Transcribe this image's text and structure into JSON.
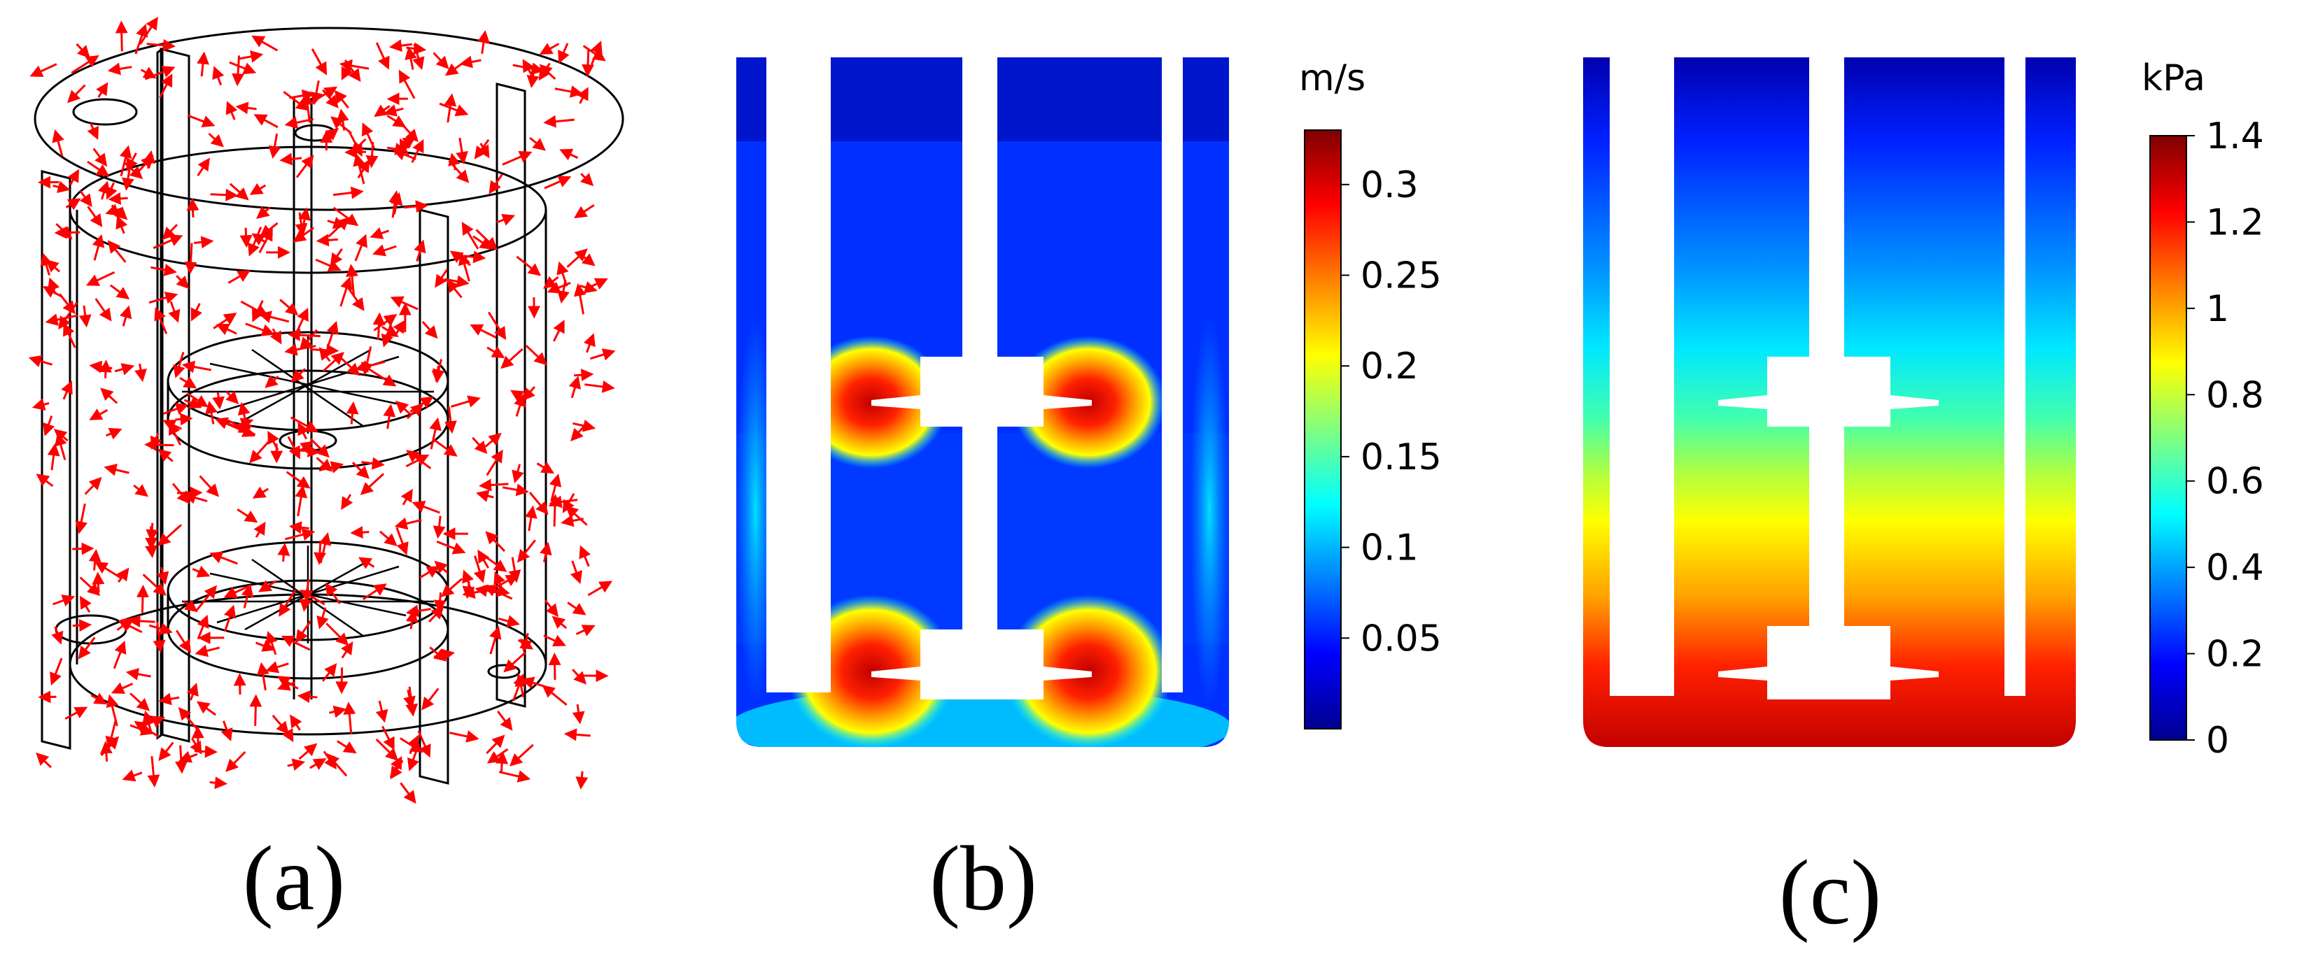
{
  "panels": {
    "a": {
      "label": "(a)"
    },
    "b": {
      "label": "(b)",
      "colorbar": {
        "unit": "m/s",
        "min": 0,
        "max": 0.33,
        "ticks": [
          "0.05",
          "0.1",
          "0.15",
          "0.2",
          "0.25",
          "0.3"
        ],
        "tick_values": [
          0.05,
          0.1,
          0.15,
          0.2,
          0.25,
          0.3
        ]
      }
    },
    "c": {
      "label": "(c)",
      "colorbar": {
        "unit": "kPa",
        "min": 0,
        "max": 1.4,
        "ticks": [
          "0",
          "0.2",
          "0.4",
          "0.6",
          "0.8",
          "1",
          "1.2",
          "1.4"
        ],
        "tick_values": [
          0,
          0.2,
          0.4,
          0.6,
          0.8,
          1.0,
          1.2,
          1.4
        ]
      }
    }
  },
  "colors": {
    "jet_low": "#00008f",
    "jet_blue": "#0000ff",
    "jet_cyan": "#00ffff",
    "jet_yellow": "#ffff00",
    "jet_red": "#ff0000",
    "jet_high": "#800000",
    "arrow": "#ff0000",
    "wireframe": "#000000"
  }
}
